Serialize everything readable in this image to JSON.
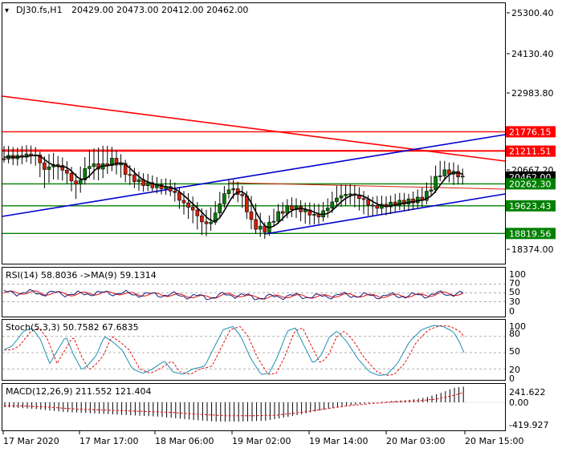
{
  "header": {
    "symbol": "DJ30.fs,H1",
    "ohlc": "20429.00 20473.00 20412.00 20462.00"
  },
  "main_axis": {
    "ticks": [
      "25300.40",
      "24130.40",
      "22983.80",
      "20667.20",
      "18374.00"
    ],
    "price_labels": [
      {
        "text": "21776.15",
        "value": 21776.15,
        "bg": "#ff0000"
      },
      {
        "text": "21211.51",
        "value": 21211.51,
        "bg": "#ff0000"
      },
      {
        "text": "20462.00",
        "value": 20462.0,
        "bg": "#000000"
      },
      {
        "text": "20262.30",
        "value": 20262.3,
        "bg": "#008000"
      },
      {
        "text": "19623.43",
        "value": 19623.43,
        "bg": "#008000"
      },
      {
        "text": "18819.56",
        "value": 18819.56,
        "bg": "#008000"
      }
    ]
  },
  "rsi": {
    "label": "RSI(14) 58.8036  ->MA(9) 59.1314",
    "ticks": [
      "100",
      "70",
      "50",
      "30",
      "0"
    ]
  },
  "stoch": {
    "label": "Stoch(5,3,3) 50.7582 67.6835",
    "ticks": [
      "100",
      "80",
      "50",
      "20",
      "0"
    ]
  },
  "macd": {
    "label": "MACD(12,26,9) 211.552 121.404",
    "ticks": [
      "241.622",
      "0.00",
      "-419.927"
    ]
  },
  "time_axis": {
    "labels": [
      "17 Mar 2020",
      "17 Mar 17:00",
      "18 Mar 06:00",
      "19 Mar 02:00",
      "19 Mar 14:00",
      "20 Mar 03:00",
      "20 Mar 15:00"
    ]
  },
  "colors": {
    "bull": "#008000",
    "bear": "#d81e06",
    "resistance": "#ff0000",
    "support": "#008000",
    "channel": "#0000cd",
    "ma": "#000000",
    "osc_main": "#1e90b4",
    "osc_signal": "#e01010"
  },
  "chart_data": {
    "type": "candlestick",
    "timeframe": "H1",
    "price_range": [
      18000,
      25600
    ],
    "last_close": 20462.0,
    "horizontal_levels": [
      21776.15,
      21211.51,
      20262.3,
      19623.43,
      18819.56
    ],
    "indicators": {
      "rsi": {
        "period": 14,
        "value": 58.8036,
        "ma_period": 9,
        "ma_value": 59.1314,
        "levels": [
          70,
          50,
          30
        ]
      },
      "stochastic": {
        "params": [
          5,
          3,
          3
        ],
        "k": 50.7582,
        "d": 67.6835,
        "levels": [
          80,
          50,
          20
        ]
      },
      "macd": {
        "params": [
          12,
          26,
          9
        ],
        "main": 211.552,
        "signal": 121.404
      }
    }
  }
}
